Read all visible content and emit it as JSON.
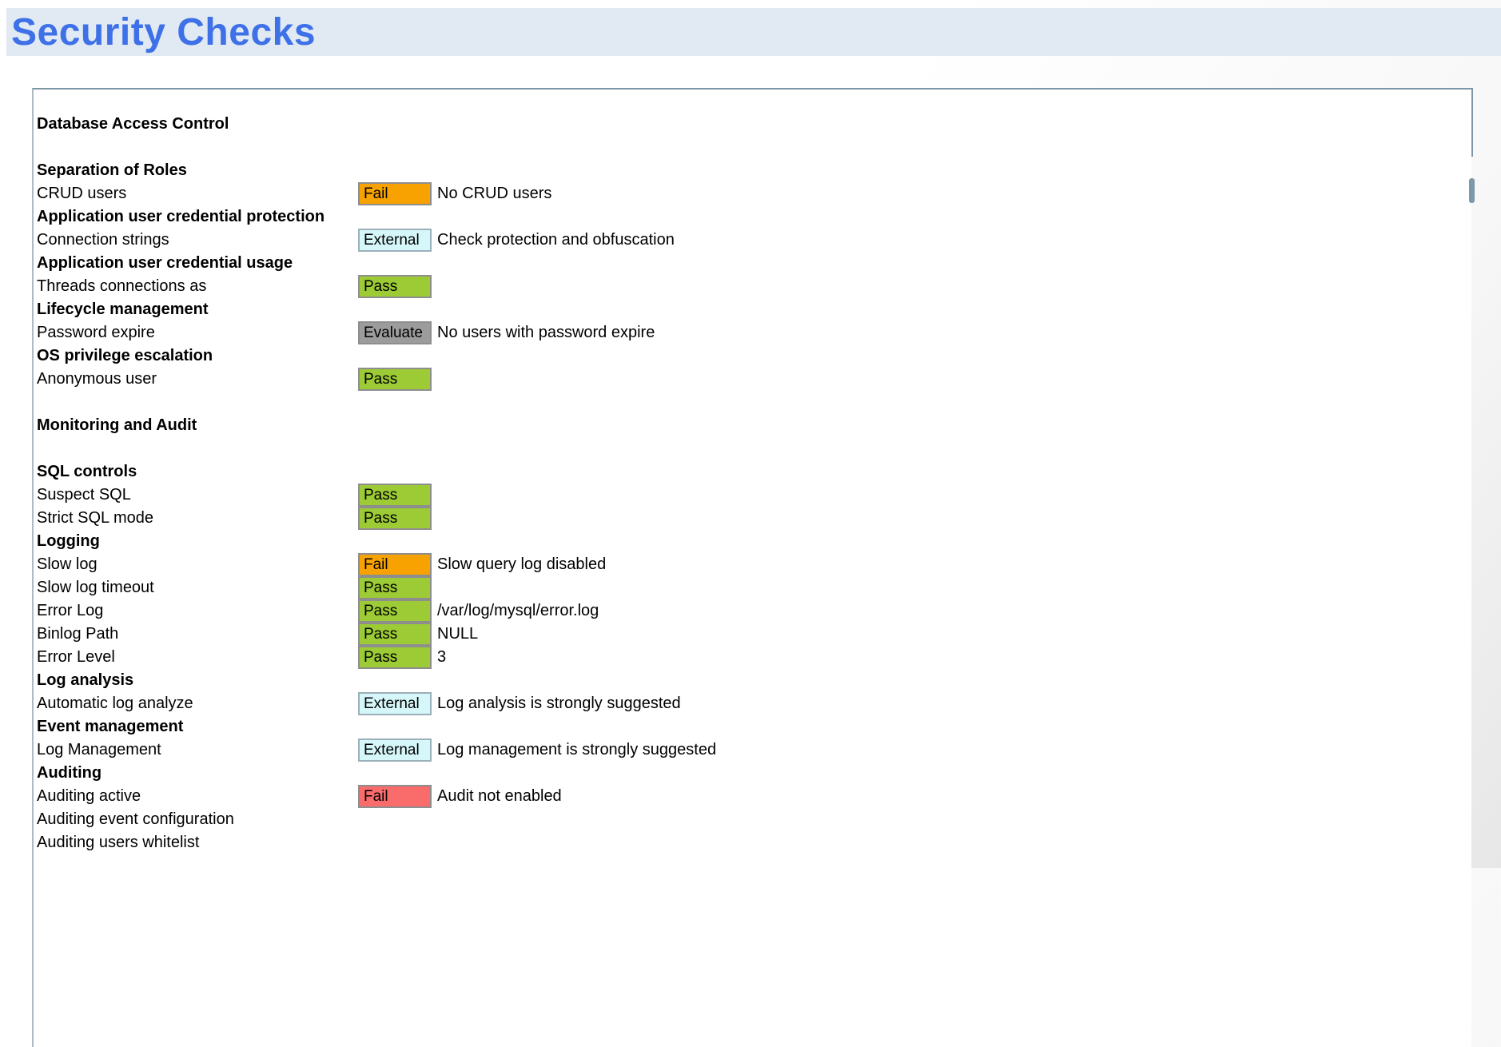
{
  "page": {
    "title": "Security Checks"
  },
  "colors": {
    "title_text": "#3e70e8",
    "title_band": "#e1eaf3",
    "panel_border": "#7e95a5",
    "badge_fail_orange": "#f7a200",
    "badge_fail_red": "#fa6b6b",
    "badge_pass_green": "#9ccb35",
    "badge_evaluate_gray": "#9c9c9c",
    "badge_external_cyan": "#d6f7fa"
  },
  "report": {
    "rows": [
      {
        "type": "header",
        "label": "Database Access Control"
      },
      {
        "type": "blank"
      },
      {
        "type": "header",
        "label": "Separation of Roles"
      },
      {
        "type": "item",
        "label": "CRUD users",
        "badge": {
          "text": "Fail",
          "style": "fail-orange"
        },
        "result": "No CRUD users"
      },
      {
        "type": "header",
        "label": "Application user credential protection"
      },
      {
        "type": "item",
        "label": "Connection strings",
        "badge": {
          "text": "External",
          "style": "external"
        },
        "result": "Check protection and obfuscation"
      },
      {
        "type": "header",
        "label": "Application user credential usage"
      },
      {
        "type": "item",
        "label": "Threads connections as",
        "badge": {
          "text": "Pass",
          "style": "pass"
        },
        "result": ""
      },
      {
        "type": "header",
        "label": "Lifecycle management"
      },
      {
        "type": "item",
        "label": "Password expire",
        "badge": {
          "text": "Evaluate",
          "style": "evaluate"
        },
        "result": "No users with password expire"
      },
      {
        "type": "header",
        "label": "OS privilege escalation"
      },
      {
        "type": "item",
        "label": "Anonymous user",
        "badge": {
          "text": "Pass",
          "style": "pass"
        },
        "result": ""
      },
      {
        "type": "blank"
      },
      {
        "type": "header",
        "label": "Monitoring and Audit"
      },
      {
        "type": "blank"
      },
      {
        "type": "header",
        "label": "SQL controls"
      },
      {
        "type": "item",
        "label": "Suspect SQL",
        "badge": {
          "text": "Pass",
          "style": "pass"
        },
        "result": ""
      },
      {
        "type": "item",
        "label": "Strict SQL mode",
        "badge": {
          "text": "Pass",
          "style": "pass"
        },
        "result": ""
      },
      {
        "type": "header",
        "label": "Logging"
      },
      {
        "type": "item",
        "label": "Slow log",
        "badge": {
          "text": "Fail",
          "style": "fail-orange"
        },
        "result": "Slow query log disabled"
      },
      {
        "type": "item",
        "label": "Slow log timeout",
        "badge": {
          "text": "Pass",
          "style": "pass"
        },
        "result": ""
      },
      {
        "type": "item",
        "label": "Error Log",
        "badge": {
          "text": "Pass",
          "style": "pass"
        },
        "result": "/var/log/mysql/error.log"
      },
      {
        "type": "item",
        "label": "Binlog Path",
        "badge": {
          "text": "Pass",
          "style": "pass"
        },
        "result": "NULL"
      },
      {
        "type": "item",
        "label": "Error Level",
        "badge": {
          "text": "Pass",
          "style": "pass"
        },
        "result": "3"
      },
      {
        "type": "header",
        "label": "Log analysis"
      },
      {
        "type": "item",
        "label": "Automatic log analyze",
        "badge": {
          "text": "External",
          "style": "external"
        },
        "result": "Log analysis is strongly suggested"
      },
      {
        "type": "header",
        "label": "Event management"
      },
      {
        "type": "item",
        "label": "Log Management",
        "badge": {
          "text": "External",
          "style": "external"
        },
        "result": "Log management is strongly suggested"
      },
      {
        "type": "header",
        "label": "Auditing"
      },
      {
        "type": "item",
        "label": "Auditing active",
        "badge": {
          "text": "Fail",
          "style": "fail-red"
        },
        "result": "Audit not enabled"
      },
      {
        "type": "item",
        "label": "Auditing event configuration"
      },
      {
        "type": "item",
        "label": "Auditing users whitelist"
      }
    ]
  }
}
